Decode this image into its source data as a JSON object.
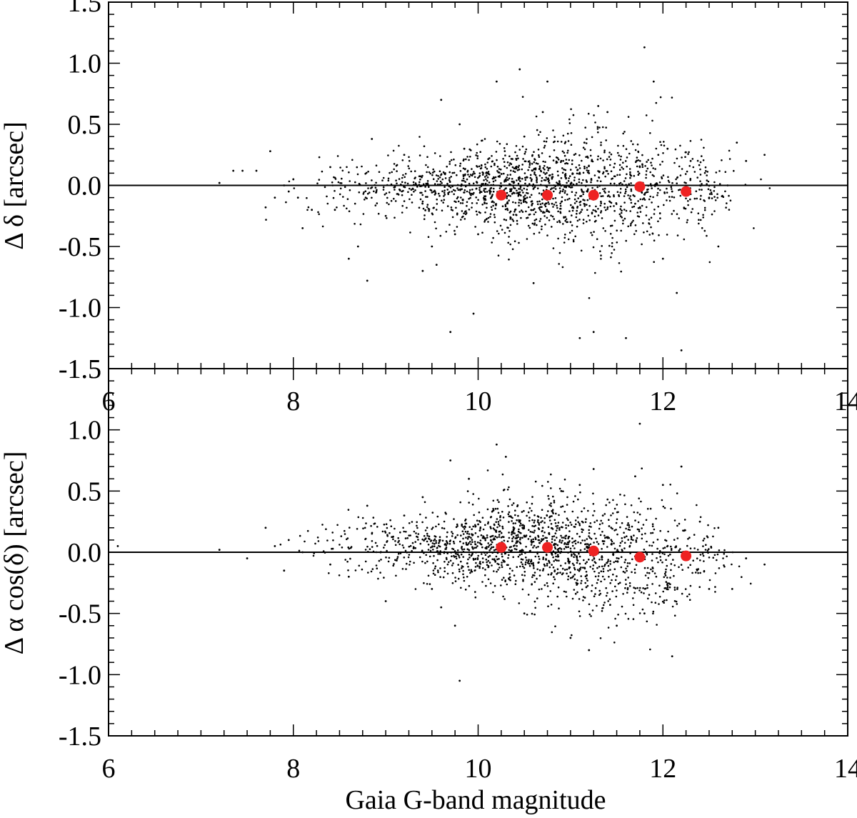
{
  "chart_data": [
    {
      "type": "scatter",
      "panel": "top",
      "xlabel": "",
      "ylabel": "Δ δ [arcsec]",
      "xlim": [
        6,
        14
      ],
      "ylim": [
        -1.5,
        1.5
      ],
      "x_ticks": [
        "6",
        "8",
        "10",
        "12",
        "14"
      ],
      "y_ticks": [
        "-1.5",
        "-1.0",
        "-0.5",
        "0.0",
        "0.5",
        "1.0",
        "1.5"
      ],
      "zero_line": true,
      "grid": false,
      "series": [
        {
          "kind": "binned-median",
          "color": "#ee2222",
          "x": [
            10.25,
            10.75,
            11.25,
            11.75,
            12.25
          ],
          "y": [
            -0.08,
            -0.08,
            -0.08,
            -0.01,
            -0.05
          ]
        },
        {
          "kind": "stars",
          "color": "#000000",
          "x": [
            7.2,
            7.35,
            7.45,
            7.6,
            7.7,
            7.75,
            7.8,
            7.9,
            7.95,
            8.0,
            8.05,
            8.1,
            8.2,
            8.4,
            8.45,
            8.6,
            8.7,
            8.8,
            8.85,
            9.0,
            9.2,
            9.4,
            9.5,
            9.55,
            9.6,
            9.7,
            9.75,
            9.8,
            9.85,
            9.95,
            10.0,
            10.1,
            10.2,
            10.3,
            10.4,
            10.45,
            10.5,
            10.6,
            10.7,
            10.75,
            10.8,
            10.9,
            11.0,
            11.1,
            11.15,
            11.2,
            11.25,
            11.3,
            11.4,
            11.5,
            11.6,
            11.7,
            11.75,
            11.8,
            11.9,
            11.95,
            12.0,
            12.05,
            12.1,
            12.15,
            12.2,
            12.3,
            12.4,
            12.5,
            12.6,
            12.7,
            12.8,
            12.9,
            13.1
          ],
          "y": [
            0.02,
            0.12,
            0.12,
            0.12,
            -0.18,
            0.28,
            -0.1,
            0.0,
            -0.05,
            0.05,
            -0.1,
            -0.35,
            -0.2,
            0.15,
            -0.2,
            -0.6,
            -0.5,
            -0.78,
            0.38,
            -0.25,
            0.25,
            -0.7,
            -0.5,
            -0.65,
            0.7,
            -1.2,
            -0.4,
            0.5,
            0.3,
            -1.05,
            -0.4,
            0.1,
            0.85,
            0.05,
            -0.2,
            0.95,
            0.4,
            -0.8,
            0.6,
            0.85,
            -0.15,
            0.2,
            -0.3,
            -1.25,
            0.35,
            0.1,
            -1.2,
            0.65,
            0.6,
            0.0,
            -1.25,
            -0.15,
            0.15,
            1.13,
            0.85,
            0.25,
            -0.6,
            0.3,
            -0.05,
            -0.88,
            -1.35,
            0.2,
            0.0,
            -0.1,
            -0.5,
            0.0,
            0.35,
            0.2,
            0.25
          ]
        }
      ]
    },
    {
      "type": "scatter",
      "panel": "bottom",
      "xlabel": "Gaia G-band magnitude",
      "ylabel": "Δ α cos(δ) [arcsec]",
      "xlim": [
        6,
        14
      ],
      "ylim": [
        -1.5,
        1.5
      ],
      "x_ticks": [
        "6",
        "8",
        "10",
        "12",
        "14"
      ],
      "y_ticks": [
        "-1.5",
        "-1.0",
        "-0.5",
        "0.0",
        "0.5",
        "1.0",
        "1.5"
      ],
      "zero_line": true,
      "grid": false,
      "series": [
        {
          "kind": "binned-median",
          "color": "#ee2222",
          "x": [
            10.25,
            10.75,
            11.25,
            11.75,
            12.25
          ],
          "y": [
            0.04,
            0.04,
            0.01,
            -0.04,
            -0.03
          ]
        },
        {
          "kind": "stars",
          "color": "#000000",
          "x": [
            6.1,
            7.2,
            7.5,
            7.7,
            7.8,
            7.9,
            7.95,
            8.1,
            8.4,
            8.6,
            8.8,
            9.0,
            9.2,
            9.4,
            9.5,
            9.6,
            9.7,
            9.75,
            9.8,
            9.9,
            10.2,
            10.3,
            10.5,
            10.7,
            10.9,
            11.0,
            11.1,
            11.2,
            11.25,
            11.35,
            11.5,
            11.7,
            11.75,
            11.8,
            12.0,
            12.1,
            12.2,
            12.4,
            12.5,
            12.6,
            12.75,
            12.9,
            13.1
          ],
          "y": [
            0.05,
            0.02,
            -0.05,
            0.2,
            0.05,
            -0.15,
            0.1,
            0.0,
            -0.1,
            -0.2,
            0.38,
            -0.4,
            0.3,
            0.45,
            -0.3,
            -0.45,
            0.75,
            -0.6,
            -1.05,
            0.6,
            0.88,
            0.78,
            -0.5,
            0.2,
            0.5,
            -0.7,
            0.55,
            -0.8,
            0.68,
            0.3,
            -0.6,
            0.62,
            1.05,
            -0.5,
            0.55,
            -0.85,
            0.7,
            0.25,
            -0.3,
            0.2,
            -0.3,
            -0.05,
            -0.1
          ]
        }
      ]
    }
  ]
}
